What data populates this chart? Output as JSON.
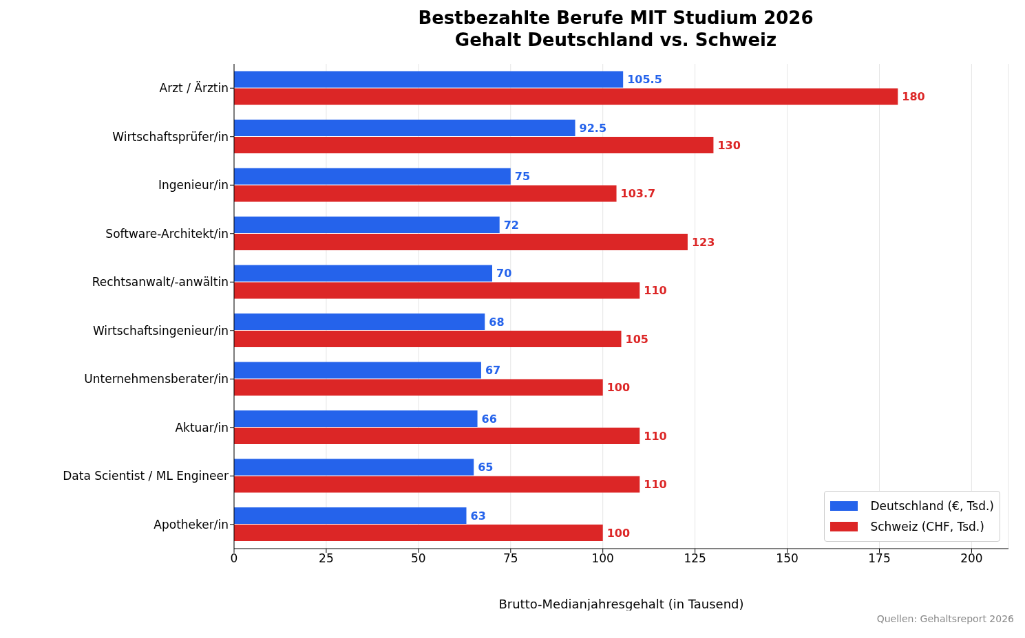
{
  "chart_data": {
    "type": "bar",
    "orientation": "horizontal",
    "title": "Bestbezahlte Berufe MIT Studium 2026\nGehalt Deutschland vs. Schweiz",
    "xlabel": "Brutto-Medianjahresgehalt (in Tausend)",
    "categories": [
      "Arzt / Ärztin",
      "Wirtschaftsprüfer/in",
      "Ingenieur/in",
      "Software-Architekt/in",
      "Rechtsanwalt/-anwältin",
      "Wirtschaftsingenieur/in",
      "Unternehmensberater/in",
      "Aktuar/in",
      "Data Scientist / ML Engineer",
      "Apotheker/in"
    ],
    "series": [
      {
        "name": "Deutschland (€, Tsd.)",
        "color": "#2563eb",
        "values": [
          105.5,
          92.5,
          75,
          72,
          70,
          68,
          67,
          66,
          65,
          63
        ]
      },
      {
        "name": "Schweiz (CHF, Tsd.)",
        "color": "#dc2626",
        "values": [
          180,
          130,
          103.7,
          123,
          110,
          105,
          100,
          110,
          110,
          100
        ]
      }
    ],
    "xlim": [
      0,
      210
    ],
    "xticks": [
      0,
      25,
      50,
      75,
      100,
      125,
      150,
      175,
      200
    ],
    "grid": "x",
    "legend": "bottom right",
    "data_labels": true,
    "annotations": [
      "Quellen: Gehaltsreport 2026"
    ]
  }
}
